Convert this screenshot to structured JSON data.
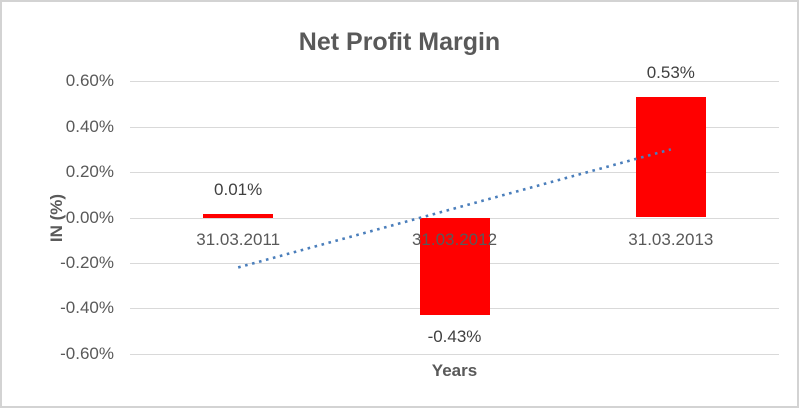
{
  "chart_data": {
    "type": "bar",
    "title": "Net Profit Margin",
    "xlabel": "Years",
    "ylabel": "IN (%)",
    "categories": [
      "31.03.2011",
      "31.03.2012",
      "31.03.2013"
    ],
    "values": [
      0.01,
      -0.43,
      0.53
    ],
    "data_labels": [
      "0.01%",
      "-0.43%",
      "0.53%"
    ],
    "yticks": [
      0.6,
      0.4,
      0.2,
      0.0,
      -0.2,
      -0.4,
      -0.6
    ],
    "ytick_labels": [
      "0.60%",
      "0.40%",
      "0.20%",
      "0.00%",
      "-0.20%",
      "-0.40%",
      "-0.60%"
    ],
    "ylim": [
      -0.7,
      0.7
    ],
    "grid": true,
    "legend": "none",
    "bar_color": "#ff0000",
    "gridline_color": "#d9d9d9",
    "axis_text_color": "#595959",
    "data_label_color": "#404040",
    "trendline": {
      "type": "linear",
      "style": "dotted",
      "color": "#4a7ebb",
      "start_category_index": 0,
      "end_category_index": 2,
      "start_value": -0.22,
      "end_value": 0.3
    }
  }
}
